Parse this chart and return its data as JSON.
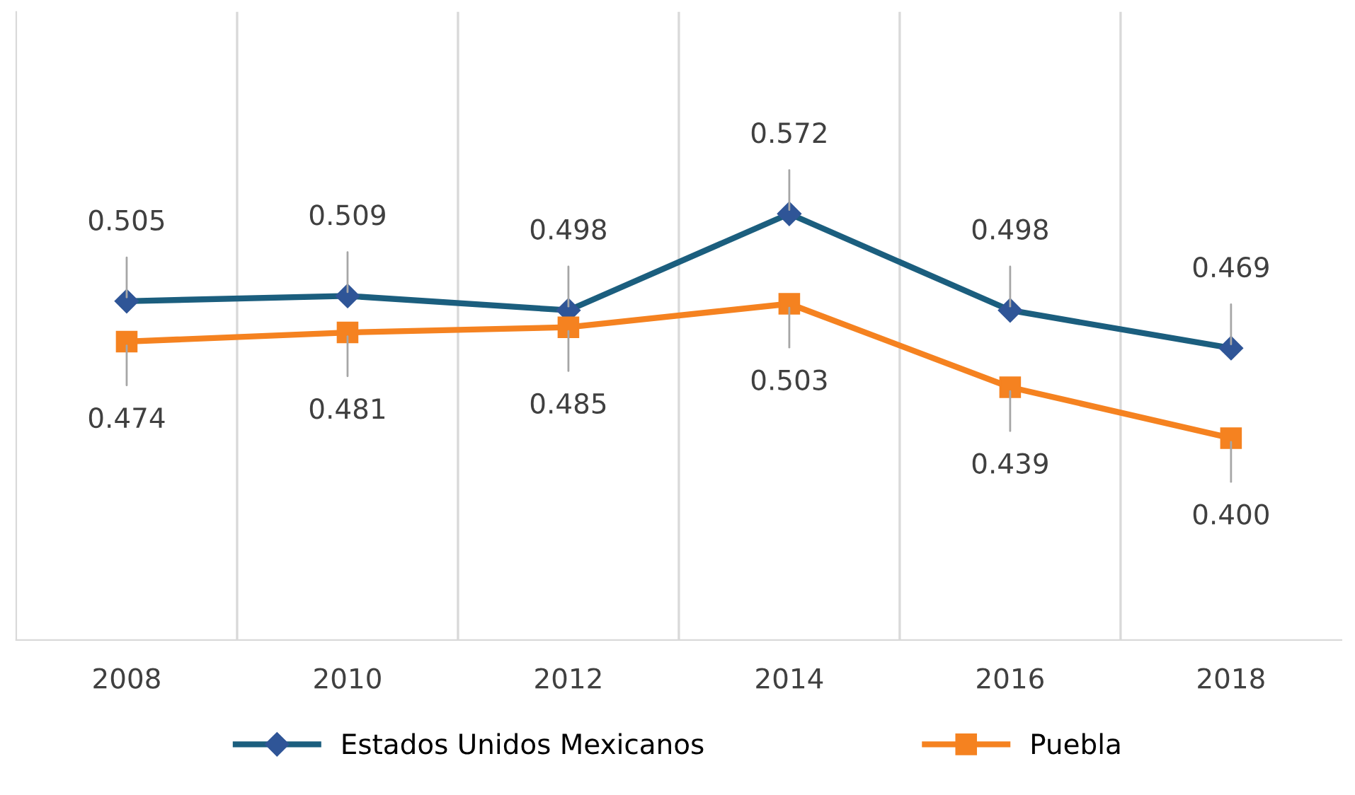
{
  "chart_data": {
    "type": "line",
    "categories": [
      "2008",
      "2010",
      "2012",
      "2014",
      "2016",
      "2018"
    ],
    "series": [
      {
        "name": "Estados Unidos Mexicanos",
        "color": "#1b5e7e",
        "marker": "diamond",
        "values": [
          0.505,
          0.509,
          0.498,
          0.572,
          0.498,
          0.469
        ],
        "value_labels": [
          "0.505",
          "0.509",
          "0.498",
          "0.572",
          "0.498",
          "0.469"
        ]
      },
      {
        "name": "Puebla",
        "color": "#f58220",
        "marker": "square",
        "values": [
          0.474,
          0.481,
          0.485,
          0.503,
          0.439,
          0.4
        ],
        "value_labels": [
          "0.474",
          "0.481",
          "0.485",
          "0.503",
          "0.439",
          "0.400"
        ]
      }
    ],
    "grid": "x",
    "legend": "bottom",
    "tick_labels": "x",
    "line_style": "solid"
  }
}
